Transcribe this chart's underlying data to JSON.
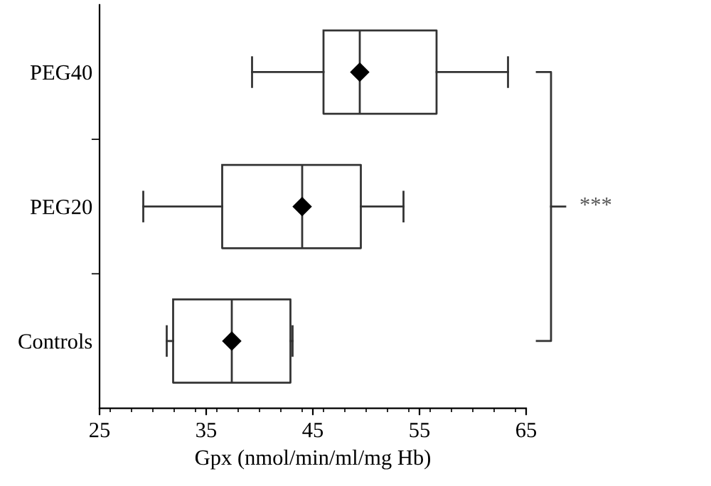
{
  "chart_data": {
    "type": "box",
    "orientation": "horizontal",
    "categories": [
      "PEG40",
      "PEG20",
      "Controls"
    ],
    "xlabel": "Gpx (nmol/min/ml/mg Hb)",
    "xlim": [
      25,
      65
    ],
    "xticks": [
      25,
      35,
      45,
      55,
      65
    ],
    "marker": "diamond",
    "annotations": [
      "***"
    ],
    "boxes": [
      {
        "low": 39.3,
        "q1": 46.0,
        "median": 49.4,
        "q3": 56.6,
        "high": 63.3,
        "mean": 49.4
      },
      {
        "low": 29.1,
        "q1": 36.5,
        "median": 44.0,
        "q3": 49.5,
        "high": 53.5,
        "mean": 44.0
      },
      {
        "low": 31.3,
        "q1": 31.9,
        "median": 37.4,
        "q3": 42.9,
        "high": 43.1,
        "mean": 37.4
      }
    ]
  }
}
